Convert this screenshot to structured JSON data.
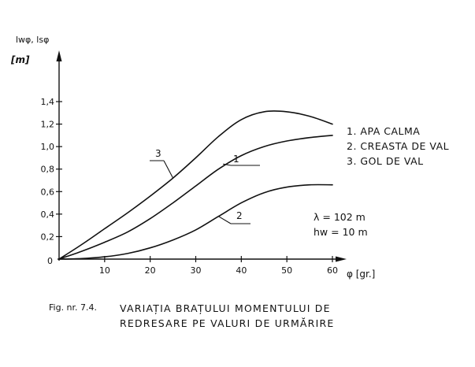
{
  "chart_data": {
    "type": "line",
    "ylabel": "lᴡφ, lsφ",
    "yunit": "[m]",
    "xlabel": "φ [gr.]",
    "xlim": [
      0,
      60
    ],
    "ylim": [
      0,
      1.4
    ],
    "x_ticks": [
      "10",
      "20",
      "30",
      "40",
      "50",
      "60"
    ],
    "y_ticks": [
      "0,2",
      "0,4",
      "0,6",
      "0,8",
      "1,0",
      "1,2",
      "1,4"
    ],
    "origin_label": "0",
    "series": [
      {
        "name": "1",
        "label": "1",
        "points": [
          [
            0,
            0
          ],
          [
            5,
            0.07
          ],
          [
            10,
            0.15
          ],
          [
            15,
            0.24
          ],
          [
            20,
            0.36
          ],
          [
            25,
            0.5
          ],
          [
            30,
            0.65
          ],
          [
            35,
            0.8
          ],
          [
            40,
            0.92
          ],
          [
            45,
            1.0
          ],
          [
            50,
            1.05
          ],
          [
            55,
            1.08
          ],
          [
            60,
            1.1
          ]
        ]
      },
      {
        "name": "2",
        "label": "2",
        "points": [
          [
            0,
            0
          ],
          [
            5,
            0.005
          ],
          [
            10,
            0.02
          ],
          [
            15,
            0.05
          ],
          [
            20,
            0.1
          ],
          [
            25,
            0.17
          ],
          [
            30,
            0.26
          ],
          [
            35,
            0.38
          ],
          [
            40,
            0.5
          ],
          [
            45,
            0.59
          ],
          [
            50,
            0.64
          ],
          [
            55,
            0.66
          ],
          [
            60,
            0.66
          ]
        ]
      },
      {
        "name": "3",
        "label": "3",
        "points": [
          [
            0,
            0
          ],
          [
            5,
            0.13
          ],
          [
            10,
            0.27
          ],
          [
            15,
            0.41
          ],
          [
            20,
            0.56
          ],
          [
            25,
            0.72
          ],
          [
            30,
            0.9
          ],
          [
            35,
            1.09
          ],
          [
            40,
            1.24
          ],
          [
            45,
            1.31
          ],
          [
            50,
            1.31
          ],
          [
            55,
            1.27
          ],
          [
            60,
            1.2
          ]
        ]
      }
    ],
    "legend": [
      "1. APA CALMA",
      "2. CREASTA DE VAL",
      "3. GOL DE VAL"
    ],
    "parameters": [
      "λ = 102 m",
      "hw = 10 m"
    ]
  },
  "caption": {
    "fig": "Fig. nr. 7.4.",
    "line1": "VARIAȚIA BRAȚULUI MOMENTULUI DE",
    "line2": "REDRESARE PE VALURI DE URMĂRIRE"
  }
}
